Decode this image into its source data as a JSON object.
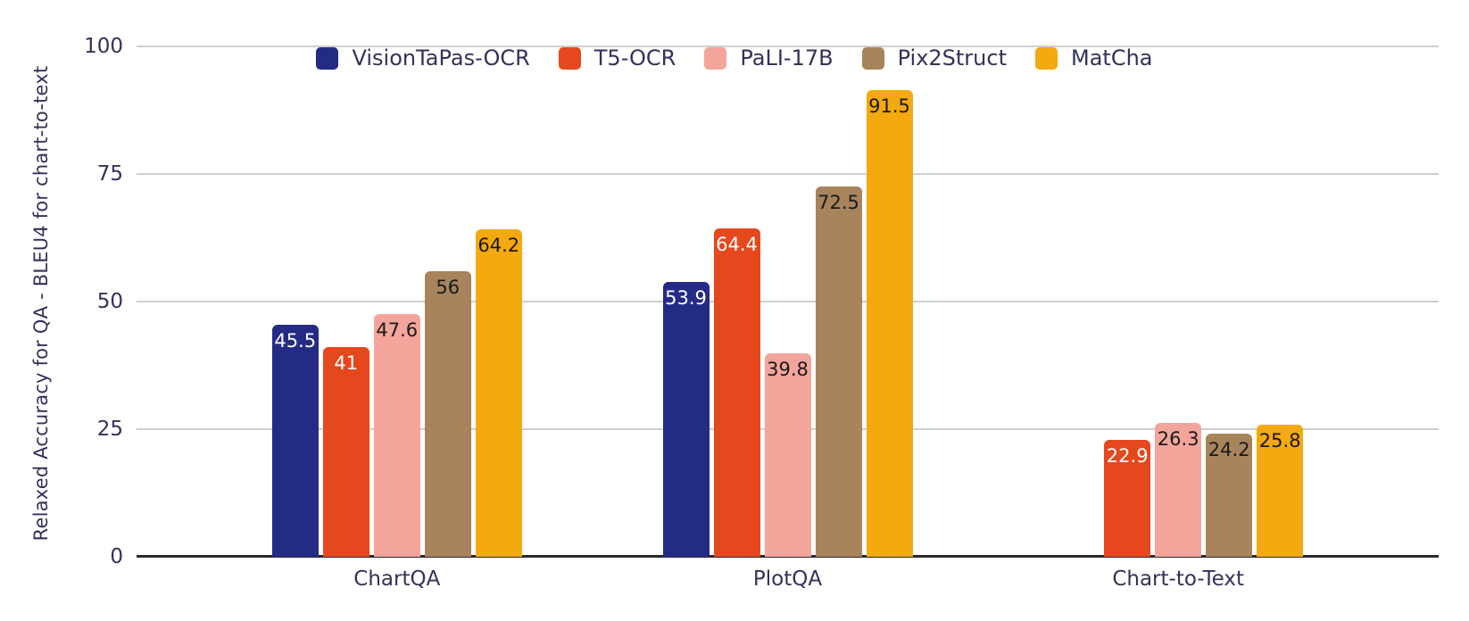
{
  "chart_data": {
    "type": "bar",
    "title": "",
    "xlabel": "",
    "ylabel": "Relaxed Accuracy for QA - BLEU4 for chart-to-text",
    "categories": [
      "ChartQA",
      "PlotQA",
      "Chart-to-Text"
    ],
    "series": [
      {
        "name": "VisionTaPas-OCR",
        "color": "#242b85",
        "label_color": "#ffffff",
        "values": [
          45.5,
          53.9,
          null
        ],
        "labels": [
          "45.5",
          "53.9",
          ""
        ]
      },
      {
        "name": "T5-OCR",
        "color": "#e5481d",
        "label_color": "#ffffff",
        "values": [
          41,
          64.4,
          22.9
        ],
        "labels": [
          "41",
          "64.4",
          "22.9"
        ]
      },
      {
        "name": "PaLI-17B",
        "color": "#f4a59b",
        "label_color": "#1a1a1a",
        "values": [
          47.6,
          39.8,
          26.3
        ],
        "labels": [
          "47.6",
          "39.8",
          "26.3"
        ]
      },
      {
        "name": "Pix2Struct",
        "color": "#a7845c",
        "label_color": "#1a1a1a",
        "values": [
          56,
          72.5,
          24.2
        ],
        "labels": [
          "56",
          "72.5",
          "24.2"
        ]
      },
      {
        "name": "MatCha",
        "color": "#f3a90f",
        "label_color": "#1a1a1a",
        "values": [
          64.2,
          91.5,
          25.8
        ],
        "labels": [
          "64.2",
          "91.5",
          "25.8"
        ]
      }
    ],
    "yticks": [
      0,
      25,
      50,
      75,
      100
    ],
    "ytick_labels": [
      "0",
      "25",
      "50",
      "75",
      "100"
    ],
    "ylim": [
      0,
      100
    ],
    "grid": true,
    "legend_position": "top",
    "group_centers_pct": [
      20,
      50,
      80
    ]
  },
  "style": {
    "text_color": "#32325a",
    "grid_color": "#cfcfcf",
    "axis_color": "#27272e",
    "background": "#ffffff"
  }
}
